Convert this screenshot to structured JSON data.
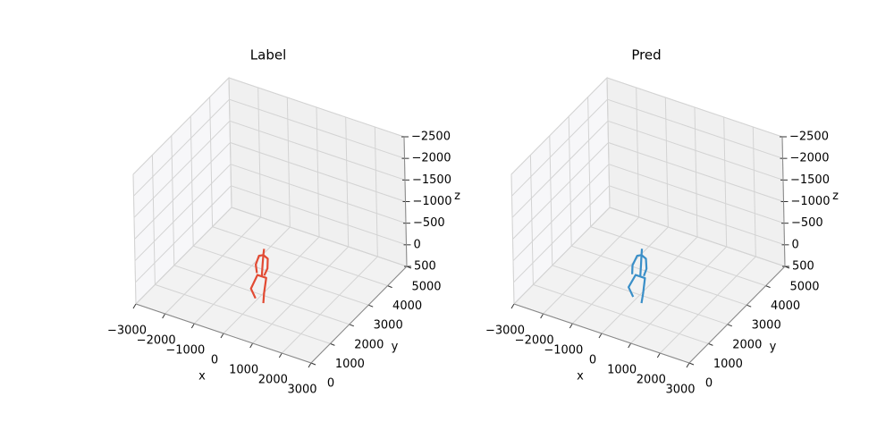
{
  "chart_data": [
    {
      "type": "line3d",
      "title": "Label",
      "xlabel": "x",
      "ylabel": "y",
      "zlabel": "z",
      "color": "#e24a33",
      "xlim": [
        -3000,
        3000
      ],
      "ylim": [
        0,
        5000
      ],
      "zlim": [
        500,
        -2500
      ],
      "xticks": [
        {
          "value": -3000,
          "label": "−3000"
        },
        {
          "value": -2000,
          "label": "−2000"
        },
        {
          "value": -1000,
          "label": "−1000"
        },
        0,
        1000,
        2000,
        3000
      ],
      "yticks": [
        0,
        1000,
        2000,
        3000,
        4000,
        5000
      ],
      "zticks": [
        {
          "value": -2500,
          "label": "−2500"
        },
        {
          "value": -2000,
          "label": "−2000"
        },
        {
          "value": -1500,
          "label": "−1500"
        },
        {
          "value": -1000,
          "label": "−1000"
        },
        {
          "value": -500,
          "label": "−500"
        },
        0,
        500
      ],
      "segments": [
        {
          "x": [
            250,
            350,
            300,
            150,
            0,
            -100,
            -50
          ],
          "y": [
            1700,
            1600,
            1800,
            1800,
            1800,
            1600,
            1750
          ],
          "z": [
            500,
            200,
            -50,
            -50,
            -50,
            200,
            480
          ]
        },
        {
          "x": [
            150,
            150,
            150,
            180
          ],
          "y": [
            1800,
            1850,
            1900,
            1900
          ],
          "z": [
            -50,
            -300,
            -500,
            -650
          ]
        },
        {
          "x": [
            50,
            -50,
            0,
            150,
            300,
            350,
            300
          ],
          "y": [
            1700,
            1800,
            1900,
            1900,
            1900,
            1800,
            1700
          ],
          "z": [
            -150,
            -280,
            -450,
            -500,
            -450,
            -280,
            -150
          ]
        }
      ]
    },
    {
      "type": "line3d",
      "title": "Pred",
      "xlabel": "x",
      "ylabel": "y",
      "zlabel": "z",
      "color": "#3a8fc8",
      "xlim": [
        -3000,
        3000
      ],
      "ylim": [
        0,
        5000
      ],
      "zlim": [
        500,
        -2500
      ],
      "xticks": [
        {
          "value": -3000,
          "label": "−3000"
        },
        {
          "value": -2000,
          "label": "−2000"
        },
        {
          "value": -1000,
          "label": "−1000"
        },
        0,
        1000,
        2000,
        3000
      ],
      "yticks": [
        0,
        1000,
        2000,
        3000,
        4000,
        5000
      ],
      "zticks": [
        {
          "value": -2500,
          "label": "−2500"
        },
        {
          "value": -2000,
          "label": "−2000"
        },
        {
          "value": -1500,
          "label": "−1500"
        },
        {
          "value": -1000,
          "label": "−1000"
        },
        {
          "value": -500,
          "label": "−500"
        },
        0,
        500
      ],
      "segments": [
        {
          "x": [
            250,
            380,
            320,
            160,
            0,
            -150,
            -100
          ],
          "y": [
            1700,
            1600,
            1800,
            1800,
            1800,
            1650,
            1800
          ],
          "z": [
            500,
            200,
            -50,
            -50,
            -50,
            200,
            480
          ]
        },
        {
          "x": [
            160,
            160,
            150,
            170
          ],
          "y": [
            1800,
            1850,
            1900,
            1900
          ],
          "z": [
            -50,
            -300,
            -500,
            -650
          ]
        },
        {
          "x": [
            -50,
            -100,
            0,
            150,
            300,
            380,
            350
          ],
          "y": [
            1700,
            1800,
            1900,
            1900,
            1900,
            1800,
            1700
          ],
          "z": [
            -100,
            -250,
            -450,
            -500,
            -450,
            -280,
            -150
          ]
        }
      ]
    }
  ]
}
